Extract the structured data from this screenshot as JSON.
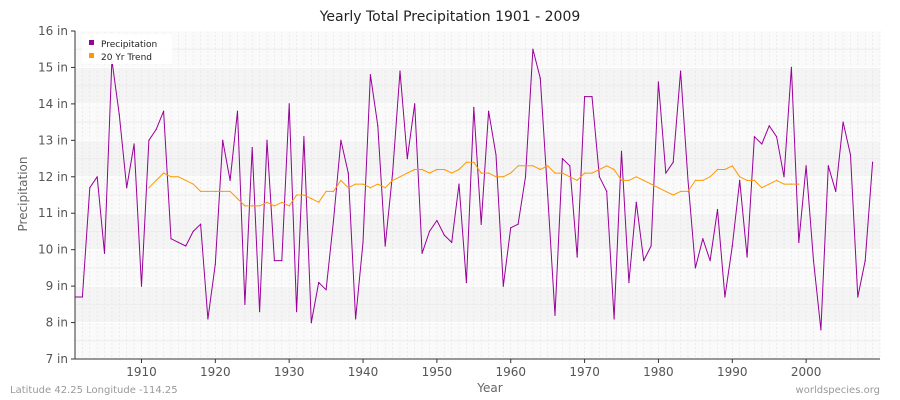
{
  "chart_data": {
    "type": "line",
    "title": "Yearly Total Precipitation 1901 - 2009",
    "xlabel": "Year",
    "ylabel": "Precipitation",
    "xlim": [
      1901,
      2010
    ],
    "ylim": [
      7,
      16
    ],
    "y_unit": "in",
    "x_ticks": [
      1910,
      1920,
      1930,
      1940,
      1950,
      1960,
      1970,
      1980,
      1990,
      2000
    ],
    "y_ticks": [
      7,
      8,
      9,
      10,
      11,
      12,
      13,
      14,
      15,
      16
    ],
    "y_tick_labels": [
      "7 in",
      "8 in",
      "9 in",
      "10 in",
      "11 in",
      "12 in",
      "13 in",
      "14 in",
      "15 in",
      "16 in"
    ],
    "grid": true,
    "legend_position": "top-left",
    "series": [
      {
        "name": "Precipitation",
        "color": "#990099",
        "x_start": 1901,
        "values": [
          8.7,
          8.7,
          11.7,
          12.0,
          9.9,
          15.2,
          13.7,
          11.7,
          12.9,
          9.0,
          13.0,
          13.3,
          13.8,
          10.3,
          10.2,
          10.1,
          10.5,
          10.7,
          8.1,
          9.6,
          13.0,
          11.9,
          13.8,
          8.5,
          12.8,
          8.3,
          13.0,
          9.7,
          9.7,
          14.0,
          8.3,
          13.1,
          8.0,
          9.1,
          8.9,
          10.8,
          13.0,
          12.1,
          8.1,
          10.2,
          14.8,
          13.4,
          10.1,
          12.1,
          14.9,
          12.5,
          14.0,
          9.9,
          10.5,
          10.8,
          10.4,
          10.2,
          11.8,
          9.1,
          13.9,
          10.7,
          13.8,
          12.6,
          9.0,
          10.6,
          10.7,
          12.0,
          15.5,
          14.7,
          11.5,
          8.2,
          12.5,
          12.3,
          9.8,
          14.2,
          14.2,
          12.0,
          11.6,
          8.1,
          12.7,
          9.1,
          11.3,
          9.7,
          10.1,
          14.6,
          12.1,
          12.4,
          14.9,
          11.9,
          9.5,
          10.3,
          9.7,
          11.1,
          8.7,
          10.1,
          11.9,
          9.8,
          13.1,
          12.9,
          13.4,
          13.1,
          12.0,
          15.0,
          10.2,
          12.3,
          9.7,
          7.8,
          12.3,
          11.6,
          13.5,
          12.6,
          8.7,
          9.7,
          12.4
        ]
      },
      {
        "name": "20 Yr Trend",
        "color": "#ff9900",
        "x_start": 1911,
        "values": [
          11.7,
          11.9,
          12.1,
          12.0,
          12.0,
          11.9,
          11.8,
          11.6,
          11.6,
          11.6,
          11.6,
          11.6,
          11.4,
          11.2,
          11.2,
          11.2,
          11.3,
          11.2,
          11.3,
          11.2,
          11.5,
          11.5,
          11.4,
          11.3,
          11.6,
          11.6,
          11.9,
          11.7,
          11.8,
          11.8,
          11.7,
          11.8,
          11.7,
          11.9,
          12.0,
          12.1,
          12.2,
          12.2,
          12.1,
          12.2,
          12.2,
          12.1,
          12.2,
          12.4,
          12.4,
          12.1,
          12.1,
          12.0,
          12.0,
          12.1,
          12.3,
          12.3,
          12.3,
          12.2,
          12.3,
          12.1,
          12.1,
          12.0,
          11.9,
          12.1,
          12.1,
          12.2,
          12.3,
          12.2,
          11.9,
          11.9,
          12.0,
          11.9,
          11.8,
          11.7,
          11.6,
          11.5,
          11.6,
          11.6,
          11.9,
          11.9,
          12.0,
          12.2,
          12.2,
          12.3,
          12.0,
          11.9,
          11.9,
          11.7,
          11.8,
          11.9,
          11.8,
          11.8,
          11.8
        ]
      }
    ]
  },
  "footer": {
    "left": "Latitude 42.25 Longitude -114.25",
    "right": "worldspecies.org"
  }
}
